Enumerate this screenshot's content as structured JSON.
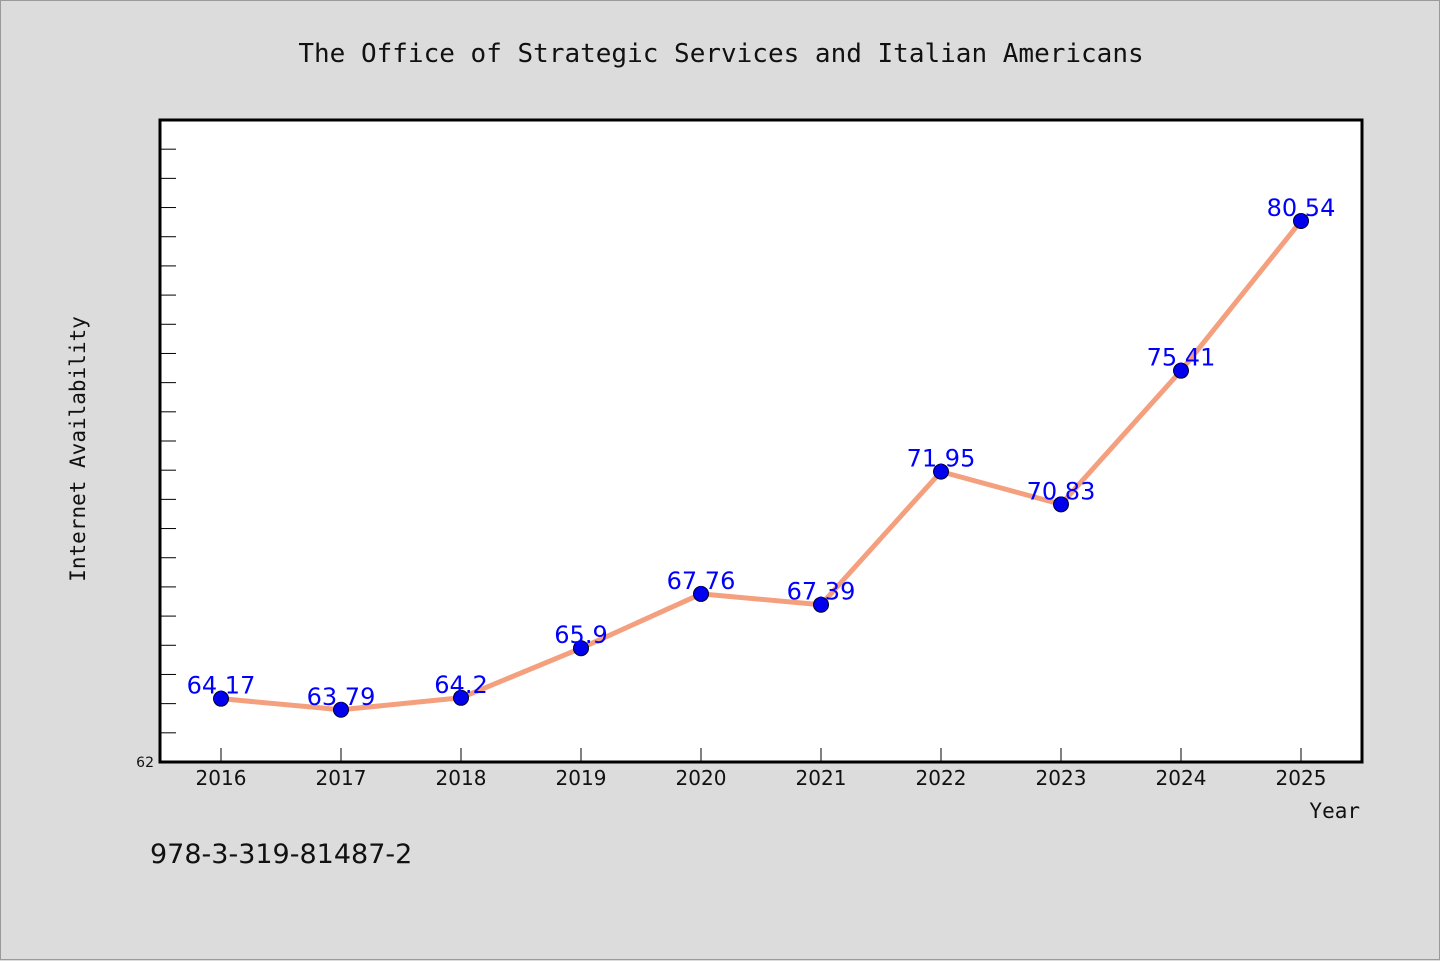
{
  "chart_data": {
    "type": "line",
    "title": "The Office of Strategic Services and Italian Americans",
    "xlabel": "Year",
    "ylabel": "Internet Availability",
    "categories": [
      "2016",
      "2017",
      "2018",
      "2019",
      "2020",
      "2021",
      "2022",
      "2023",
      "2024",
      "2025"
    ],
    "series": [
      {
        "values": [
          64.17,
          63.79,
          64.2,
          65.9,
          67.76,
          67.39,
          71.95,
          70.83,
          75.41,
          80.54
        ],
        "labels": [
          "64.17",
          "63.79",
          "64.2",
          "65.9",
          "67.76",
          "67.39",
          "71.95",
          "70.83",
          "75.41",
          "80.54"
        ],
        "line_color": "#f4a07e",
        "marker_color": "#0000ee"
      }
    ],
    "ylim": [
      62,
      84
    ],
    "y_min_label": "62",
    "grid": false,
    "label_color": "#0000ff"
  },
  "footer": {
    "code": "978-3-319-81487-2"
  }
}
